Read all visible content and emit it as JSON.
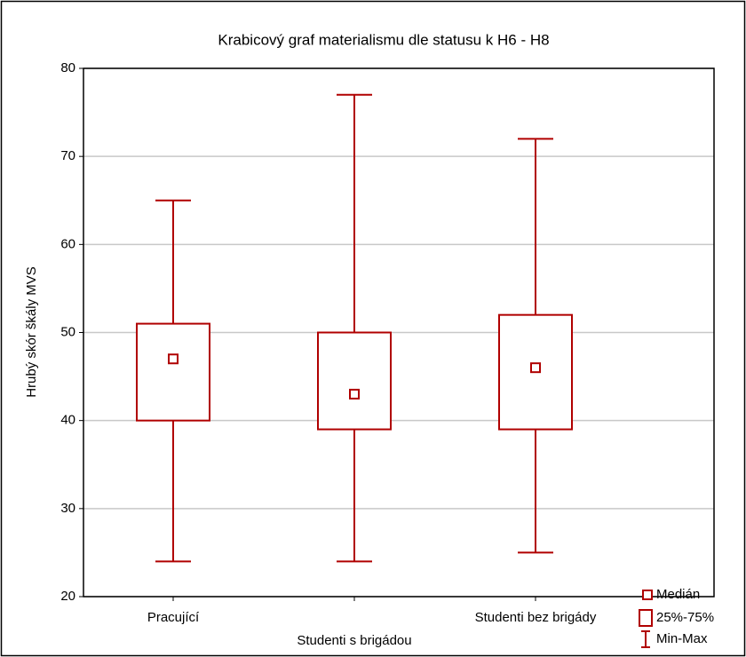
{
  "chart_data": {
    "type": "box",
    "title": "Krabicový graf materialismu dle statusu k H6 - H8",
    "ylabel": "Hrubý skór škály MVS",
    "categories": [
      "Pracující",
      "Studenti s brigádou",
      "Studenti bez brigády"
    ],
    "min": [
      24,
      24,
      25
    ],
    "q1": [
      40,
      39,
      39
    ],
    "median": [
      47,
      43,
      46
    ],
    "q3": [
      51,
      50,
      52
    ],
    "max": [
      65,
      77,
      72
    ],
    "color": "#b00000",
    "ylim": [
      20,
      80
    ],
    "yticks": [
      20,
      30,
      40,
      50,
      60,
      70,
      80
    ],
    "grid": true,
    "legend": [
      "Medián",
      "25%-75%",
      "Min-Max"
    ],
    "legend_position": "lower right"
  }
}
